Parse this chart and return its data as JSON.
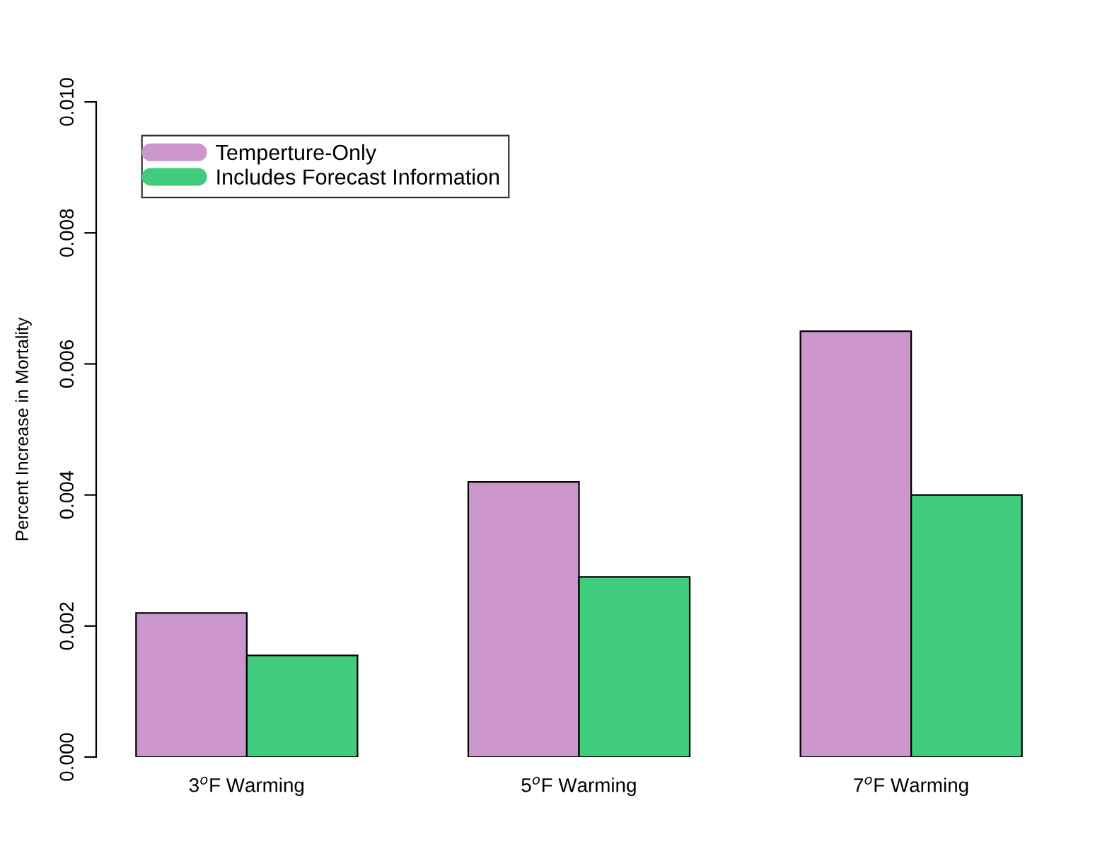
{
  "chart_data": {
    "type": "bar",
    "ylabel": "Percent Increase in Mortality",
    "categories": [
      "3$^{o}$F Warming",
      "5$^{o}$F Warming",
      "7$^{o}$F Warming"
    ],
    "series": [
      {
        "name": "Temperture-Only",
        "color": "#cc96cc",
        "values": [
          0.0022,
          0.0042,
          0.0065
        ]
      },
      {
        "name": "Includes Forecast Information",
        "color": "#40cc7c",
        "values": [
          0.00155,
          0.00275,
          0.004
        ]
      }
    ],
    "ylim": [
      0,
      0.01
    ],
    "yticks": [
      {
        "value": 0,
        "label": "0.000"
      },
      {
        "value": 0.002,
        "label": "0.002"
      },
      {
        "value": 0.004,
        "label": "0.004"
      },
      {
        "value": 0.006,
        "label": "0.006"
      },
      {
        "value": 0.008,
        "label": "0.008"
      },
      {
        "value": 0.01,
        "label": "0.010"
      }
    ],
    "legend": "top left",
    "grid": false
  }
}
